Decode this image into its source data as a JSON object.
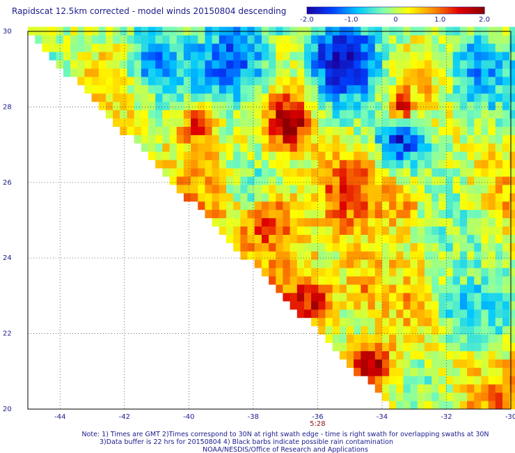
{
  "chart_data": {
    "type": "heatmap",
    "title": "Rapidscat 12.5km corrected - model winds 20150804 descending",
    "colorbar": {
      "ticks": [
        "-2.0",
        "-1.0",
        "0",
        "1.0",
        "2.0"
      ],
      "range": [
        -2.0,
        2.0
      ],
      "colors": [
        "#1a00a0",
        "#0040ff",
        "#00c8ff",
        "#7fffb0",
        "#ffff00",
        "#ff8c00",
        "#e00000",
        "#8b0000"
      ]
    },
    "x_ticks": [
      "-44",
      "-42",
      "-40",
      "-38",
      "-36",
      "-34",
      "-32",
      "-30"
    ],
    "y_ticks": [
      "30",
      "28",
      "26",
      "24",
      "22",
      "20"
    ],
    "xlim": [
      -45,
      -30
    ],
    "ylim": [
      20,
      30
    ],
    "grid": true,
    "time_label": "5:28",
    "time_label_lon": -36,
    "notes": [
      "Note: 1) Times are GMT 2)Times correspond to 30N at right swath edge - time is right swath for overlapping swaths at 30N",
      "3)Data buffer is 22 hrs for 20150804 4) Black barbs indicate possible rain contamination",
      "NOAA/NESDIS/Office of Research and Applications"
    ],
    "swath_edge": [
      [
        -45,
        30
      ],
      [
        -33.6,
        20
      ]
    ],
    "features": [
      {
        "lon": -36.9,
        "lat": 27.6,
        "value": 2.0,
        "radius": 0.7
      },
      {
        "lon": -39.7,
        "lat": 27.6,
        "value": 1.5,
        "radius": 0.6
      },
      {
        "lon": -36.2,
        "lat": 22.9,
        "value": 1.6,
        "radius": 0.6
      },
      {
        "lon": -35.0,
        "lat": 25.9,
        "value": 1.2,
        "radius": 0.8
      },
      {
        "lon": -37.6,
        "lat": 25.0,
        "value": 1.2,
        "radius": 1.0
      },
      {
        "lon": -33.4,
        "lat": 25.5,
        "value": 0.9,
        "radius": 0.7
      },
      {
        "lon": -34.3,
        "lat": 21.2,
        "value": 2.0,
        "radius": 0.5
      },
      {
        "lon": -34.6,
        "lat": 23.3,
        "value": 0.8,
        "radius": 0.8
      },
      {
        "lon": -35.2,
        "lat": 29.3,
        "value": -2.0,
        "radius": 1.0
      },
      {
        "lon": -33.4,
        "lat": 27.3,
        "value": -1.8,
        "radius": 0.8
      },
      {
        "lon": -38.6,
        "lat": 29.2,
        "value": -1.3,
        "radius": 1.2
      },
      {
        "lon": -41.0,
        "lat": 29.2,
        "value": -1.2,
        "radius": 0.9
      },
      {
        "lon": -31.0,
        "lat": 29.0,
        "value": -1.0,
        "radius": 1.0
      },
      {
        "lon": -31.3,
        "lat": 22.7,
        "value": -0.8,
        "radius": 1.2
      },
      {
        "lon": -38.1,
        "lat": 26.0,
        "value": -0.4,
        "radius": 0.7
      },
      {
        "lon": -33.4,
        "lat": 28.0,
        "value": 1.3,
        "radius": 0.5
      },
      {
        "lon": -31.5,
        "lat": 24.6,
        "value": -0.3,
        "radius": 1.2
      },
      {
        "lon": -32.8,
        "lat": 20.6,
        "value": -0.2,
        "radius": 0.9
      }
    ]
  }
}
